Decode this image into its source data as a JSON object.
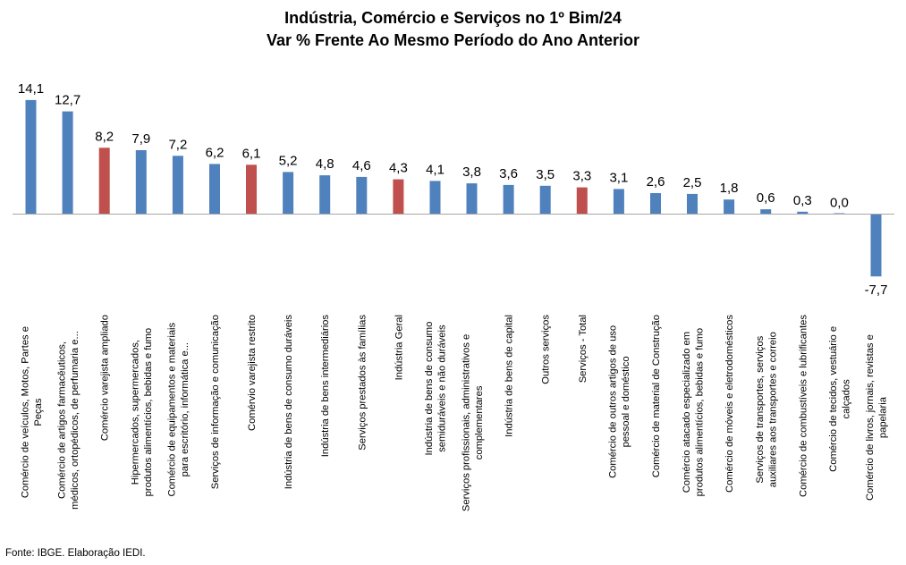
{
  "chart_data": {
    "type": "bar",
    "title": [
      "Indústria, Comércio e Serviços no 1º Bim/24",
      "Var % Frente Ao Mesmo Período do Ano Anterior"
    ],
    "categories": [
      "Comércio de veículos, Motos, Partes e Peças",
      "Comércio de artigos farmacêuticos, médicos, ortopédicos, de perfumaria e...",
      "Comércio varejista ampliado",
      "Hipermercados, supermercados, produtos alimentícios, bebidas e fumo",
      "Comércio de equipamentos e materiais para escritório, informática e...",
      "Serviços de informação e comunicação",
      "Comérvio varejista restrito",
      "Indústria de bens de consumo duráveis",
      "Indústria de bens intermediários",
      "Serviços prestados às famílias",
      "Indústria Geral",
      "Indústria de bens de consumo semiduráveis e não duráveis",
      "Serviços profissionais, administrativos e complementares",
      "Indústria de bens de capital",
      "Outros serviços",
      "Serviços - Total",
      "Comércio de outros artigos de uso pessoal e doméstico",
      "Comércio de material de Construção",
      "Comércio atacado especializado em produtos alimentícios, bebidas e fumo",
      "Comércio de móveis e eletrodomésticos",
      "Serviços de transportes, serviços auxiliares aos transportes e correio",
      "Comércio de combustíveis e lubrificantes",
      "Comércio de tecidos, vestuário e calçados",
      "Comércio de livros, jornais, revistas e papelaria"
    ],
    "category_lines": [
      [
        "Comércio de veículos, Motos, Partes e",
        "Peças"
      ],
      [
        "Comércio de artigos farmacêuticos,",
        "médicos, ortopédicos, de perfumaria e..."
      ],
      [
        "Comércio varejista ampliado"
      ],
      [
        "Hipermercados, supermercados,",
        "produtos alimentícios, bebidas e fumo"
      ],
      [
        "Comércio de equipamentos e materiais",
        "para escritório, informática e..."
      ],
      [
        "Serviços de informação e comunicação"
      ],
      [
        "Comérvio varejista restrito"
      ],
      [
        "Indústria de bens de consumo duráveis"
      ],
      [
        "Indústria de bens intermediários"
      ],
      [
        "Serviços prestados às famílias"
      ],
      [
        "Indústria Geral"
      ],
      [
        "Indústria de bens de consumo",
        "semiduráveis e não duráveis"
      ],
      [
        "Serviços profissionais, administrativos e",
        "complementares"
      ],
      [
        "Indústria de bens de capital"
      ],
      [
        "Outros serviços"
      ],
      [
        "Serviços - Total"
      ],
      [
        "Comércio de outros artigos de uso",
        "pessoal e doméstico"
      ],
      [
        "Comércio de material de Construção"
      ],
      [
        "Comércio atacado especializado em",
        "produtos alimentícios, bebidas e fumo"
      ],
      [
        "Comércio de móveis e eletrodomésticos"
      ],
      [
        "Serviços de transportes, serviços",
        "auxiliares aos transportes e correio"
      ],
      [
        "Comércio de combustíveis e lubrificantes"
      ],
      [
        "Comércio de tecidos, vestuário e",
        "calçados"
      ],
      [
        "Comércio de livros, jornais, revistas e",
        "papelaria"
      ]
    ],
    "values": [
      14.1,
      12.7,
      8.2,
      7.9,
      7.2,
      6.2,
      6.1,
      5.2,
      4.8,
      4.6,
      4.3,
      4.1,
      3.8,
      3.6,
      3.5,
      3.3,
      3.1,
      2.6,
      2.5,
      1.8,
      0.6,
      0.3,
      0.0,
      -7.7
    ],
    "value_labels": [
      "14,1",
      "12,7",
      "8,2",
      "7,9",
      "7,2",
      "6,2",
      "6,1",
      "5,2",
      "4,8",
      "4,6",
      "4,3",
      "4,1",
      "3,8",
      "3,6",
      "3,5",
      "3,3",
      "3,1",
      "2,6",
      "2,5",
      "1,8",
      "0,6",
      "0,3",
      "0,0",
      "-7,7"
    ],
    "highlighted": [
      2,
      6,
      10,
      15
    ],
    "colors": {
      "default": "#4F81BD",
      "highlight": "#C0504D",
      "axis": "#A6A6A6"
    },
    "ylim": [
      -9,
      16
    ],
    "xlabel": "",
    "ylabel": "",
    "grid": false,
    "legend": "none"
  },
  "source": "Fonte: IBGE. Elaboração IEDI."
}
